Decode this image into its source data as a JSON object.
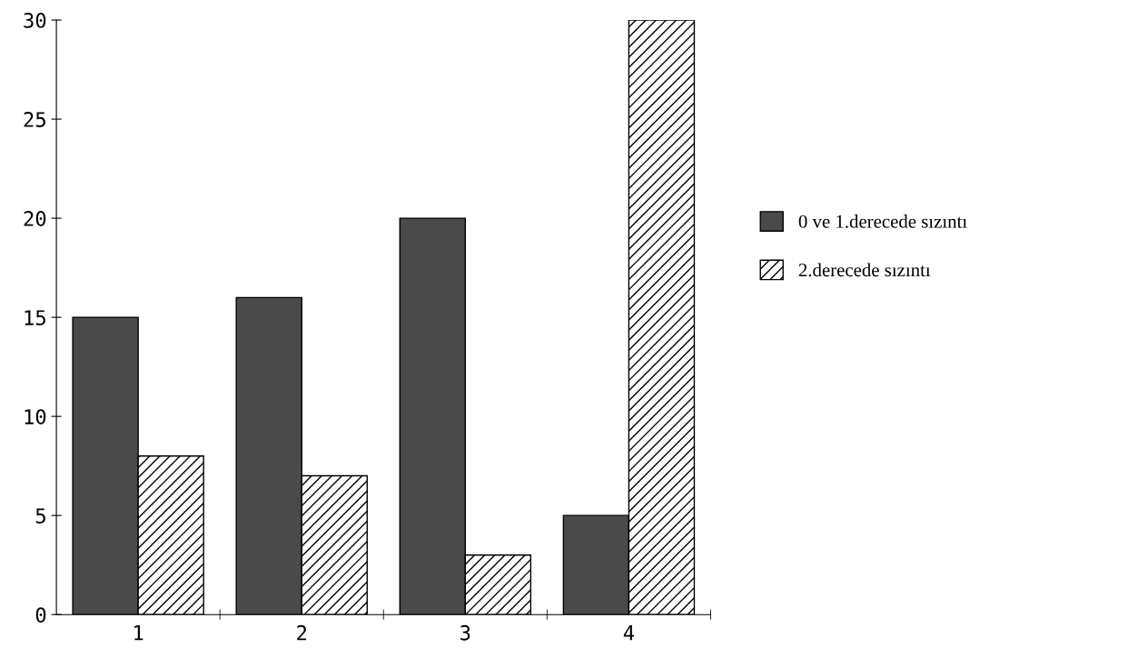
{
  "chart_data": {
    "type": "bar",
    "categories": [
      "1",
      "2",
      "3",
      "4"
    ],
    "series": [
      {
        "name": "0 ve 1.derecede sızıntı",
        "color": "#4a4a4a",
        "values": [
          15,
          16,
          20,
          5
        ]
      },
      {
        "name": "2.derecede sızıntı",
        "color": "#000000",
        "values": [
          8,
          7,
          3,
          30
        ]
      }
    ],
    "ylim": [
      0,
      30
    ],
    "yticks": [
      0,
      5,
      10,
      15,
      20,
      25,
      30
    ],
    "grid": false,
    "legend": "right"
  }
}
